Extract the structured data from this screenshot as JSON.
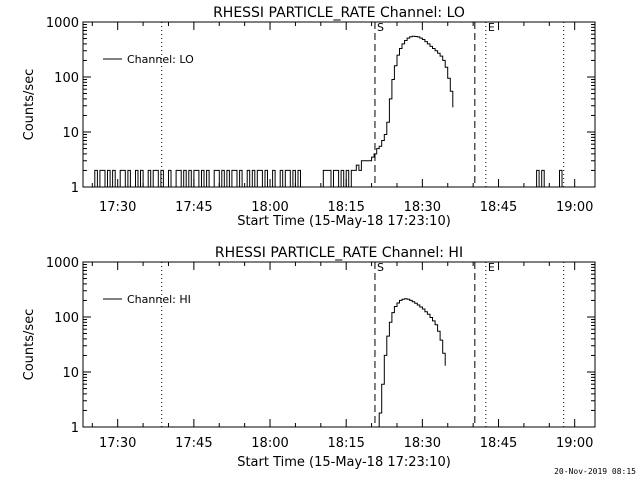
{
  "footer": {
    "timestamp": "20-Nov-2019 08:15"
  },
  "chart_data": [
    {
      "type": "line",
      "title": "RHESSI PARTICLE_RATE Channel: LO",
      "xlabel": "Start Time (15-May-18 17:23:10)",
      "ylabel": "Counts/sec",
      "y_scale": "log",
      "ylim": [
        1,
        1000
      ],
      "xlim": [
        "17:23:10",
        "19:04:00"
      ],
      "x_ticks": [
        "17:30",
        "17:45",
        "18:00",
        "18:15",
        "18:30",
        "18:45",
        "19:00"
      ],
      "y_ticks": [
        "1",
        "10",
        "100",
        "1000"
      ],
      "legend": {
        "position": "top-left",
        "entries": [
          "Channel: LO"
        ]
      },
      "markers": [
        {
          "label": "S",
          "time": "18:20:40",
          "style": "dashed"
        },
        {
          "label": "",
          "time": "18:40:20",
          "style": "dashed"
        },
        {
          "label": "E",
          "time": "18:42:30",
          "style": "dotted"
        },
        {
          "label": "",
          "time": "17:38:40",
          "style": "dotted"
        },
        {
          "label": "",
          "time": "18:57:50",
          "style": "dotted"
        }
      ],
      "series": [
        {
          "name": "Channel: LO",
          "points": [
            [
              "17:25:00",
              1
            ],
            [
              "17:25:30",
              2
            ],
            [
              "17:26:00",
              1
            ],
            [
              "17:26:30",
              2
            ],
            [
              "17:27:00",
              2
            ],
            [
              "17:27:30",
              1
            ],
            [
              "17:28:00",
              2
            ],
            [
              "17:28:30",
              1
            ],
            [
              "17:29:00",
              2
            ],
            [
              "17:29:30",
              1
            ],
            [
              "17:30:00",
              1
            ],
            [
              "17:30:30",
              2
            ],
            [
              "17:31:00",
              2
            ],
            [
              "17:31:30",
              1
            ],
            [
              "17:32:00",
              2
            ],
            [
              "17:32:30",
              1
            ],
            [
              "17:33:00",
              1
            ],
            [
              "17:33:30",
              2
            ],
            [
              "17:34:00",
              1
            ],
            [
              "17:34:30",
              2
            ],
            [
              "17:35:00",
              1
            ],
            [
              "17:35:30",
              1
            ],
            [
              "17:36:00",
              2
            ],
            [
              "17:36:30",
              1
            ],
            [
              "17:37:00",
              2
            ],
            [
              "17:37:30",
              2
            ],
            [
              "17:38:00",
              1
            ],
            [
              "17:38:30",
              2
            ],
            [
              "17:39:00",
              1
            ],
            [
              "17:39:30",
              1
            ],
            [
              "17:40:00",
              2
            ],
            [
              "17:40:30",
              1
            ],
            [
              "17:41:00",
              1
            ],
            [
              "17:41:30",
              2
            ],
            [
              "17:42:00",
              2
            ],
            [
              "17:42:30",
              1
            ],
            [
              "17:43:00",
              2
            ],
            [
              "17:43:30",
              1
            ],
            [
              "17:44:00",
              2
            ],
            [
              "17:44:30",
              1
            ],
            [
              "17:45:00",
              2
            ],
            [
              "17:45:30",
              2
            ],
            [
              "17:46:00",
              1
            ],
            [
              "17:46:30",
              2
            ],
            [
              "17:47:00",
              1
            ],
            [
              "17:47:30",
              2
            ],
            [
              "17:48:00",
              1
            ],
            [
              "17:48:30",
              1
            ],
            [
              "17:49:00",
              2
            ],
            [
              "17:49:30",
              2
            ],
            [
              "17:50:00",
              1
            ],
            [
              "17:50:30",
              2
            ],
            [
              "17:51:00",
              1
            ],
            [
              "17:51:30",
              2
            ],
            [
              "17:52:00",
              1
            ],
            [
              "17:52:30",
              2
            ],
            [
              "17:53:00",
              2
            ],
            [
              "17:53:30",
              1
            ],
            [
              "17:54:00",
              2
            ],
            [
              "17:54:30",
              1
            ],
            [
              "17:55:00",
              1
            ],
            [
              "17:55:30",
              2
            ],
            [
              "17:56:00",
              1
            ],
            [
              "17:56:30",
              2
            ],
            [
              "17:57:00",
              1
            ],
            [
              "17:57:30",
              2
            ],
            [
              "17:58:00",
              2
            ],
            [
              "17:58:30",
              1
            ],
            [
              "17:59:00",
              2
            ],
            [
              "17:59:30",
              1
            ],
            [
              "18:00:00",
              1
            ],
            [
              "18:00:30",
              2
            ],
            [
              "18:01:00",
              1
            ],
            [
              "18:01:30",
              1
            ],
            [
              "18:02:00",
              2
            ],
            [
              "18:02:30",
              1
            ],
            [
              "18:03:00",
              2
            ],
            [
              "18:03:30",
              2
            ],
            [
              "18:04:00",
              1
            ],
            [
              "18:04:30",
              2
            ],
            [
              "18:05:00",
              1
            ],
            [
              "18:05:30",
              2
            ],
            [
              "18:06:00",
              1
            ],
            [
              "18:06:30",
              1
            ],
            [
              "18:07:00",
              1
            ],
            [
              "18:07:30",
              1
            ],
            [
              "18:08:00",
              1
            ],
            [
              "18:08:30",
              1
            ],
            [
              "18:09:00",
              1
            ],
            [
              "18:09:30",
              1
            ],
            [
              "18:10:00",
              1
            ],
            [
              "18:10:30",
              2
            ],
            [
              "18:11:00",
              2
            ],
            [
              "18:11:30",
              2
            ],
            [
              "18:12:00",
              1
            ],
            [
              "18:12:30",
              2
            ],
            [
              "18:13:00",
              2
            ],
            [
              "18:13:30",
              1
            ],
            [
              "18:14:00",
              2
            ],
            [
              "18:14:30",
              1
            ],
            [
              "18:15:00",
              2
            ],
            [
              "18:15:30",
              1
            ],
            [
              "18:16:00",
              2
            ],
            [
              "18:16:30",
              2
            ],
            [
              "18:17:00",
              2.5
            ],
            [
              "18:17:30",
              2
            ],
            [
              "18:18:00",
              3
            ],
            [
              "18:18:30",
              3
            ],
            [
              "18:19:00",
              3
            ],
            [
              "18:19:30",
              3
            ],
            [
              "18:20:00",
              3.5
            ],
            [
              "18:20:30",
              4
            ],
            [
              "18:21:00",
              5
            ],
            [
              "18:21:30",
              5.5
            ],
            [
              "18:22:00",
              7
            ],
            [
              "18:22:30",
              9
            ],
            [
              "18:23:00",
              15
            ],
            [
              "18:23:30",
              40
            ],
            [
              "18:24:00",
              90
            ],
            [
              "18:24:30",
              160
            ],
            [
              "18:25:00",
              250
            ],
            [
              "18:25:30",
              330
            ],
            [
              "18:26:00",
              400
            ],
            [
              "18:26:30",
              460
            ],
            [
              "18:27:00",
              510
            ],
            [
              "18:27:30",
              540
            ],
            [
              "18:28:00",
              550
            ],
            [
              "18:28:30",
              545
            ],
            [
              "18:29:00",
              535
            ],
            [
              "18:29:30",
              510
            ],
            [
              "18:30:00",
              480
            ],
            [
              "18:30:30",
              440
            ],
            [
              "18:31:00",
              400
            ],
            [
              "18:31:30",
              360
            ],
            [
              "18:32:00",
              330
            ],
            [
              "18:32:30",
              300
            ],
            [
              "18:33:00",
              270
            ],
            [
              "18:33:30",
              240
            ],
            [
              "18:34:00",
              200
            ],
            [
              "18:34:30",
              150
            ],
            [
              "18:35:00",
              95
            ],
            [
              "18:35:30",
              55
            ],
            [
              "18:36:00",
              28
            ],
            null,
            [
              "18:52:00",
              1
            ],
            [
              "18:52:30",
              2
            ],
            [
              "18:53:00",
              1
            ],
            [
              "18:53:30",
              2
            ],
            [
              "18:54:00",
              1
            ],
            null,
            [
              "18:56:30",
              1
            ],
            [
              "18:57:00",
              2
            ],
            [
              "18:57:30",
              1
            ]
          ]
        }
      ]
    },
    {
      "type": "line",
      "title": "RHESSI PARTICLE_RATE Channel: HI",
      "xlabel": "Start Time (15-May-18 17:23:10)",
      "ylabel": "Counts/sec",
      "y_scale": "log",
      "ylim": [
        1,
        1000
      ],
      "xlim": [
        "17:23:10",
        "19:04:00"
      ],
      "x_ticks": [
        "17:30",
        "17:45",
        "18:00",
        "18:15",
        "18:30",
        "18:45",
        "19:00"
      ],
      "y_ticks": [
        "1",
        "10",
        "100",
        "1000"
      ],
      "legend": {
        "position": "top-left",
        "entries": [
          "Channel: HI"
        ]
      },
      "markers": [
        {
          "label": "S",
          "time": "18:20:40",
          "style": "dashed"
        },
        {
          "label": "",
          "time": "18:40:20",
          "style": "dashed"
        },
        {
          "label": "E",
          "time": "18:42:30",
          "style": "dotted"
        },
        {
          "label": "",
          "time": "17:38:40",
          "style": "dotted"
        },
        {
          "label": "",
          "time": "18:57:50",
          "style": "dotted"
        }
      ],
      "series": [
        {
          "name": "Channel: HI",
          "points": [
            [
              "18:21:10",
              1
            ],
            [
              "18:21:30",
              1.8
            ],
            [
              "18:22:00",
              6
            ],
            [
              "18:22:30",
              20
            ],
            [
              "18:23:00",
              45
            ],
            [
              "18:23:30",
              80
            ],
            [
              "18:24:00",
              120
            ],
            [
              "18:24:30",
              155
            ],
            [
              "18:25:00",
              180
            ],
            [
              "18:25:30",
              200
            ],
            [
              "18:26:00",
              210
            ],
            [
              "18:26:30",
              215
            ],
            [
              "18:27:00",
              210
            ],
            [
              "18:27:30",
              200
            ],
            [
              "18:28:00",
              190
            ],
            [
              "18:28:30",
              178
            ],
            [
              "18:29:00",
              165
            ],
            [
              "18:29:30",
              152
            ],
            [
              "18:30:00",
              140
            ],
            [
              "18:30:30",
              125
            ],
            [
              "18:31:00",
              112
            ],
            [
              "18:31:30",
              98
            ],
            [
              "18:32:00",
              85
            ],
            [
              "18:32:30",
              72
            ],
            [
              "18:33:00",
              55
            ],
            [
              "18:33:30",
              38
            ],
            [
              "18:34:00",
              22
            ],
            [
              "18:34:30",
              13
            ]
          ]
        }
      ]
    }
  ]
}
